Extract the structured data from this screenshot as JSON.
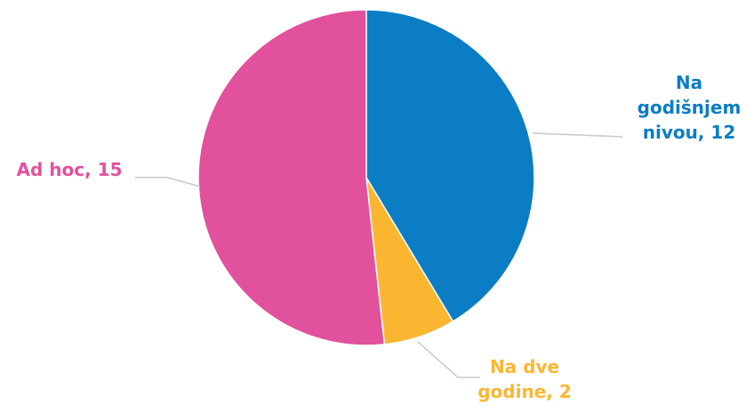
{
  "chart_data": {
    "type": "pie",
    "title": "",
    "start_angle_deg": 0,
    "direction": "clockwise",
    "slices": [
      {
        "label_lines": [
          "Na",
          "godišnjem",
          "nivou, 12"
        ],
        "category": "Na godišnjem nivou",
        "value": 12,
        "color": "#0a7dc5"
      },
      {
        "label_lines": [
          "Na dve",
          "godine, 2"
        ],
        "category": "Na dve godine",
        "value": 2,
        "color": "#fbb631"
      },
      {
        "label_lines": [
          "Ad hoc, 15"
        ],
        "category": "Ad hoc",
        "value": 15,
        "color": "#e2519c"
      }
    ],
    "leader_line_color": "#c8c8c8",
    "legend": "none"
  }
}
